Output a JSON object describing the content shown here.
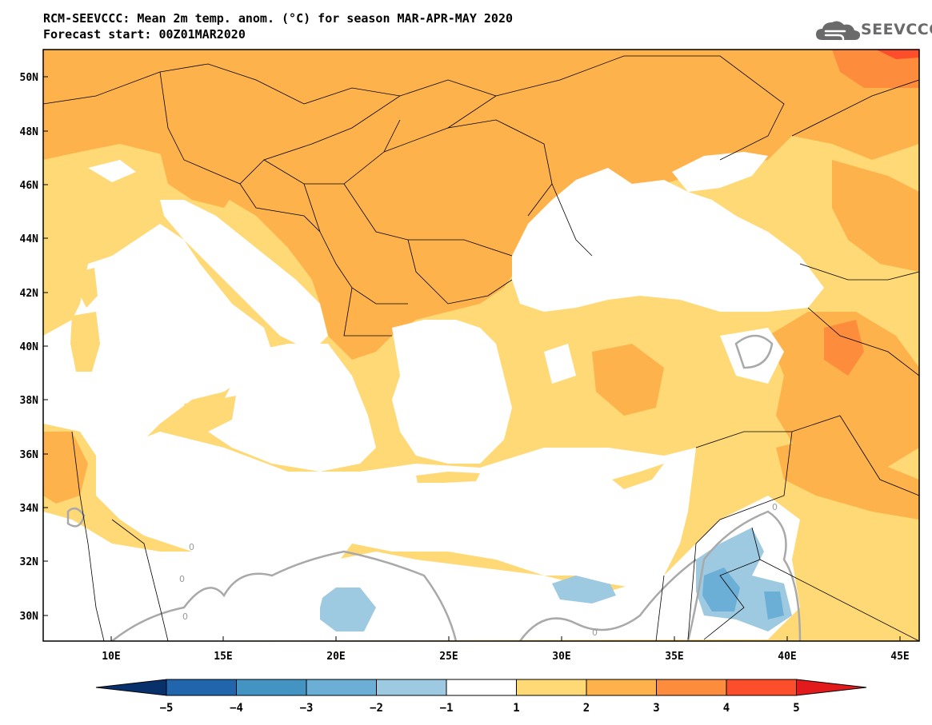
{
  "header": {
    "title_line1": "RCM-SEEVCCC: Mean 2m temp. anom. (°C) for season MAR-APR-MAY 2020",
    "title_line2": "Forecast start: 00Z01MAR2020"
  },
  "logo": {
    "text": "SEEVCCC",
    "icon": "cloud-icon"
  },
  "map": {
    "lon_range": [
      7,
      45.5
    ],
    "lat_range": [
      29,
      51
    ],
    "lat_ticks": [
      "50N",
      "48N",
      "46N",
      "44N",
      "42N",
      "40N",
      "38N",
      "36N",
      "34N",
      "32N",
      "30N"
    ],
    "lon_ticks": [
      "10E",
      "15E",
      "20E",
      "25E",
      "30E",
      "35E",
      "40E",
      "45E"
    ],
    "contour_label": "0"
  },
  "colorbar": {
    "ticks": [
      "−5",
      "−4",
      "−3",
      "−2",
      "−1",
      "1",
      "2",
      "3",
      "4",
      "5"
    ],
    "colors": [
      "#08306b",
      "#2166ac",
      "#4393c3",
      "#6baed6",
      "#9ecae1",
      "#ffffff",
      "#fed976",
      "#feb24c",
      "#fd8d3c",
      "#fc4e2a",
      "#e31a1c"
    ]
  },
  "legend_colors": {
    "sea": "#ffffff",
    "anom_1_2": "#fed976",
    "anom_2_3": "#feb24c",
    "anom_3_4": "#fd8d3c",
    "anom_4_5": "#fc4e2a",
    "anom_neg_1_2": "#9ecae1",
    "anom_neg_2_3": "#6baed6"
  }
}
